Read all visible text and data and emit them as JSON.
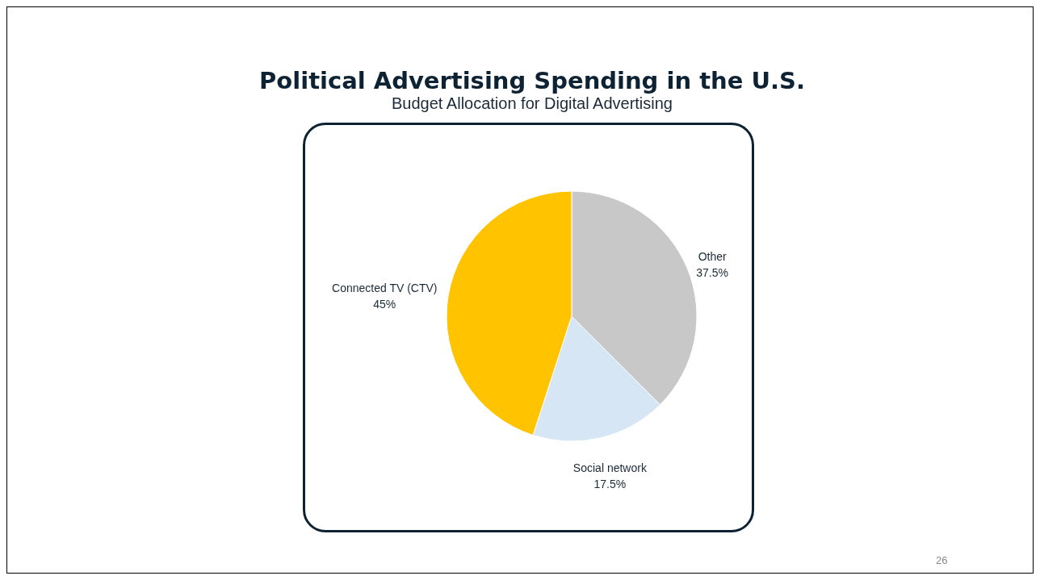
{
  "chart_data": {
    "type": "pie",
    "title": "Political Advertising Spending in the U.S.",
    "subtitle": "Budget Allocation for Digital Advertising",
    "categories": [
      "Other",
      "Social network",
      "Connected TV (CTV)"
    ],
    "values": [
      37.5,
      17.5,
      45
    ],
    "colors": [
      "#c8c8c8",
      "#d6e6f4",
      "#ffc300"
    ],
    "value_labels": [
      "37.5%",
      "17.5%",
      "45%"
    ],
    "annotations": [
      "26"
    ],
    "legend": false
  }
}
